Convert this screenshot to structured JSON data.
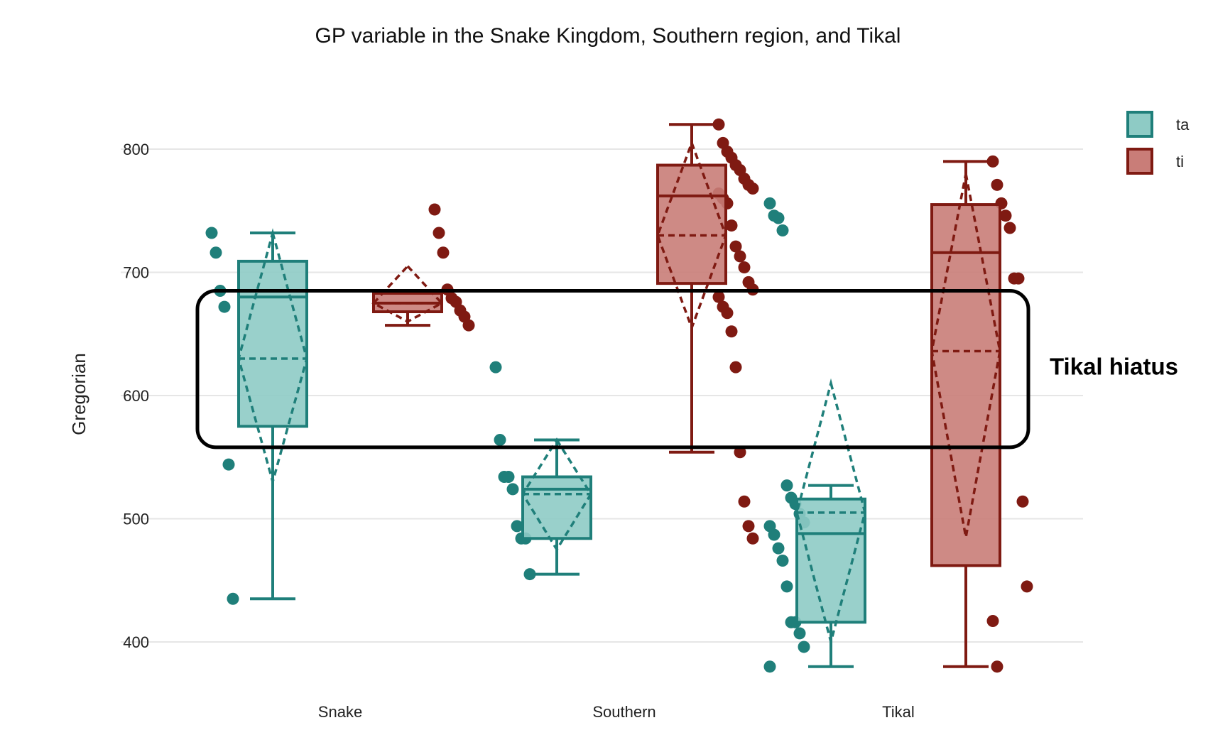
{
  "chart_data": {
    "type": "box",
    "title": "GP variable in the Snake Kingdom, Southern region, and Tikal",
    "xlabel": "",
    "ylabel": "Gregorian",
    "ylim": [
      370,
      830
    ],
    "yticks": [
      400,
      500,
      600,
      700,
      800
    ],
    "grid": true,
    "legend_position": "top-right",
    "categories": [
      "Snake",
      "Southern",
      "Tikal"
    ],
    "series": [
      {
        "name": "ta",
        "color": "#1f7f7a",
        "fill": "#8ecbc5",
        "boxes": [
          {
            "category": "Snake",
            "min": 435,
            "q1": 575,
            "median": 680,
            "q3": 709,
            "max": 732,
            "mean": 630,
            "diamond_low": 530,
            "diamond_high": 732
          },
          {
            "category": "Southern",
            "min": 455,
            "q1": 484,
            "median": 524,
            "q3": 534,
            "max": 564,
            "mean": 520,
            "diamond_low": 475,
            "diamond_high": 564
          },
          {
            "category": "Tikal",
            "min": 380,
            "q1": 416,
            "median": 488,
            "q3": 516,
            "max": 527,
            "mean": 505,
            "diamond_low": 400,
            "diamond_high": 610
          }
        ],
        "points": [
          {
            "category": "Snake",
            "values": [
              732,
              716,
              685,
              672,
              544,
              435
            ]
          },
          {
            "category": "Southern",
            "values": [
              623,
              564,
              534,
              534,
              524,
              494,
              484,
              484,
              455
            ]
          },
          {
            "category": "Tikal",
            "values": [
              756,
              746,
              744,
              734,
              527,
              517,
              512,
              504,
              497,
              494,
              487,
              476,
              466,
              445,
              416,
              416,
              407,
              396,
              380
            ]
          }
        ]
      },
      {
        "name": "ti",
        "color": "#7f1a12",
        "fill": "#c97d78",
        "boxes": [
          {
            "category": "Snake",
            "min": 657,
            "q1": 668,
            "median": 675,
            "q3": 683,
            "max": 683,
            "mean": 675,
            "diamond_low": 660,
            "diamond_high": 705
          },
          {
            "category": "Southern",
            "min": 554,
            "q1": 691,
            "median": 762,
            "q3": 787,
            "max": 820,
            "mean": 730,
            "diamond_low": 655,
            "diamond_high": 805
          },
          {
            "category": "Tikal",
            "min": 380,
            "q1": 462,
            "median": 716,
            "q3": 755,
            "max": 790,
            "mean": 636,
            "diamond_low": 485,
            "diamond_high": 780
          }
        ],
        "points": [
          {
            "category": "Snake",
            "values": [
              751,
              732,
              716,
              686,
              679,
              676,
              669,
              664,
              657
            ]
          },
          {
            "category": "Southern",
            "values": [
              820,
              805,
              798,
              793,
              787,
              783,
              776,
              771,
              768,
              764,
              760,
              756,
              738,
              721,
              713,
              704,
              692,
              686,
              680,
              672,
              667,
              652,
              623,
              554,
              514,
              494,
              484
            ]
          },
          {
            "category": "Tikal",
            "values": [
              790,
              771,
              756,
              746,
              736,
              695,
              695,
              514,
              445,
              417,
              380
            ]
          }
        ]
      }
    ],
    "annotation": {
      "label": "Tikal hiatus",
      "y_range": [
        558,
        685
      ]
    }
  }
}
